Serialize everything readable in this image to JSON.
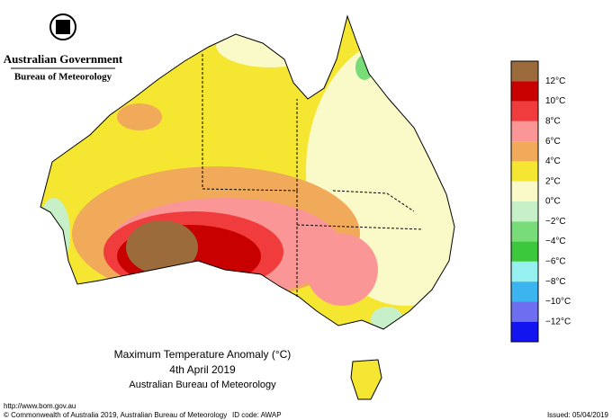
{
  "header": {
    "title": "Australian Government",
    "subtitle": "Bureau of Meteorology"
  },
  "map": {
    "title": "Maximum Temperature Anomaly (°C)",
    "date": "4th April 2019",
    "source": "Australian Bureau of Meteorology"
  },
  "legend": {
    "colors": [
      "#9b6b3c",
      "#c80000",
      "#f03c3c",
      "#fa9696",
      "#f0aa5a",
      "#f5e632",
      "#fafac8",
      "#c8f0c8",
      "#78dc78",
      "#3cc83c",
      "#96f0f0",
      "#3cb4f0",
      "#6e6ef0",
      "#1414f0"
    ],
    "labels": [
      "12°C",
      "10°C",
      "8°C",
      "6°C",
      "4°C",
      "2°C",
      "0°C",
      "−2°C",
      "−4°C",
      "−6°C",
      "−8°C",
      "−10°C",
      "−12°C"
    ]
  },
  "footer": {
    "url": "http://www.bom.gov.au",
    "copyright": "© Commonwealth of Australia 2019, Australian Bureau of Meteorology",
    "id": "ID code: AWAP",
    "issued": "Issued: 05/04/2019"
  }
}
